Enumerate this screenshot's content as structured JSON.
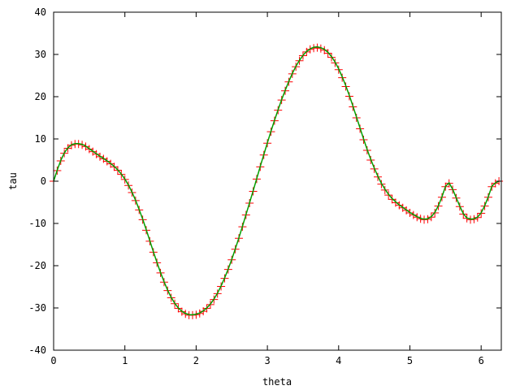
{
  "chart_data": {
    "type": "line",
    "title": "",
    "xlabel": "theta",
    "ylabel": "tau",
    "xlim": [
      0,
      6.283
    ],
    "ylim": [
      -40,
      40
    ],
    "x_ticks": [
      0,
      1,
      2,
      3,
      4,
      5,
      6
    ],
    "y_ticks": [
      -40,
      -30,
      -20,
      -10,
      0,
      10,
      20,
      30,
      40
    ],
    "grid": false,
    "legend": "none",
    "series": [
      {
        "style": "points-plus",
        "color": "#ff0000",
        "x": [
          0.0,
          0.05,
          0.1,
          0.15,
          0.2,
          0.25,
          0.3,
          0.35,
          0.4,
          0.45,
          0.5,
          0.55,
          0.6,
          0.65,
          0.7,
          0.75,
          0.8,
          0.85,
          0.9,
          0.95,
          1.0,
          1.05,
          1.1,
          1.15,
          1.2,
          1.25,
          1.3,
          1.35,
          1.4,
          1.45,
          1.5,
          1.55,
          1.6,
          1.65,
          1.7,
          1.75,
          1.8,
          1.85,
          1.9,
          1.95,
          2.0,
          2.05,
          2.1,
          2.15,
          2.2,
          2.25,
          2.3,
          2.35,
          2.4,
          2.45,
          2.5,
          2.55,
          2.6,
          2.65,
          2.7,
          2.75,
          2.8,
          2.85,
          2.9,
          2.95,
          3.0,
          3.05,
          3.1,
          3.15,
          3.2,
          3.25,
          3.3,
          3.35,
          3.4,
          3.45,
          3.5,
          3.55,
          3.6,
          3.65,
          3.7,
          3.75,
          3.8,
          3.85,
          3.9,
          3.95,
          4.0,
          4.05,
          4.1,
          4.15,
          4.2,
          4.25,
          4.3,
          4.35,
          4.4,
          4.45,
          4.5,
          4.55,
          4.6,
          4.65,
          4.7,
          4.75,
          4.8,
          4.85,
          4.9,
          4.95,
          5.0,
          5.05,
          5.1,
          5.15,
          5.2,
          5.25,
          5.3,
          5.35,
          5.4,
          5.45,
          5.5,
          5.55,
          5.6,
          5.65,
          5.7,
          5.75,
          5.8,
          5.85,
          5.9,
          5.95,
          6.0,
          6.05,
          6.1,
          6.15,
          6.2,
          6.25
        ],
        "values": [
          0.0,
          2.5,
          4.8,
          6.6,
          7.8,
          8.5,
          8.8,
          8.8,
          8.6,
          8.2,
          7.6,
          7.0,
          6.4,
          5.8,
          5.3,
          4.7,
          4.1,
          3.4,
          2.6,
          1.6,
          0.4,
          -1.0,
          -2.7,
          -4.6,
          -6.8,
          -9.1,
          -11.6,
          -14.2,
          -16.8,
          -19.3,
          -21.7,
          -23.9,
          -25.9,
          -27.6,
          -29.0,
          -30.1,
          -30.9,
          -31.4,
          -31.7,
          -31.7,
          -31.6,
          -31.3,
          -30.8,
          -30.1,
          -29.2,
          -28.0,
          -26.6,
          -24.9,
          -23.0,
          -20.9,
          -18.6,
          -16.1,
          -13.5,
          -10.8,
          -8.0,
          -5.2,
          -2.4,
          0.5,
          3.4,
          6.2,
          9.0,
          11.7,
          14.3,
          16.8,
          19.2,
          21.4,
          23.5,
          25.4,
          27.1,
          28.5,
          29.7,
          30.6,
          31.2,
          31.5,
          31.6,
          31.4,
          31.0,
          30.3,
          29.3,
          28.0,
          26.4,
          24.5,
          22.4,
          20.1,
          17.6,
          15.0,
          12.4,
          9.8,
          7.3,
          5.0,
          2.9,
          1.0,
          -0.7,
          -2.1,
          -3.3,
          -4.3,
          -5.1,
          -5.7,
          -6.3,
          -6.9,
          -7.5,
          -8.0,
          -8.5,
          -8.9,
          -9.1,
          -9.0,
          -8.5,
          -7.5,
          -5.9,
          -3.8,
          -1.3,
          -0.5,
          -2.0,
          -4.0,
          -6.0,
          -7.8,
          -8.8,
          -9.1,
          -9.0,
          -8.6,
          -7.6,
          -5.9,
          -3.8,
          -1.3,
          -0.5,
          0.0
        ]
      },
      {
        "style": "line",
        "color": "#00a000",
        "x": [
          0.0,
          0.05,
          0.1,
          0.15,
          0.2,
          0.25,
          0.3,
          0.35,
          0.4,
          0.45,
          0.5,
          0.55,
          0.6,
          0.65,
          0.7,
          0.75,
          0.8,
          0.85,
          0.9,
          0.95,
          1.0,
          1.05,
          1.1,
          1.15,
          1.2,
          1.25,
          1.3,
          1.35,
          1.4,
          1.45,
          1.5,
          1.55,
          1.6,
          1.65,
          1.7,
          1.75,
          1.8,
          1.85,
          1.9,
          1.95,
          2.0,
          2.05,
          2.1,
          2.15,
          2.2,
          2.25,
          2.3,
          2.35,
          2.4,
          2.45,
          2.5,
          2.55,
          2.6,
          2.65,
          2.7,
          2.75,
          2.8,
          2.85,
          2.9,
          2.95,
          3.0,
          3.05,
          3.1,
          3.15,
          3.2,
          3.25,
          3.3,
          3.35,
          3.4,
          3.45,
          3.5,
          3.55,
          3.6,
          3.65,
          3.7,
          3.75,
          3.8,
          3.85,
          3.9,
          3.95,
          4.0,
          4.05,
          4.1,
          4.15,
          4.2,
          4.25,
          4.3,
          4.35,
          4.4,
          4.45,
          4.5,
          4.55,
          4.6,
          4.65,
          4.7,
          4.75,
          4.8,
          4.85,
          4.9,
          4.95,
          5.0,
          5.05,
          5.1,
          5.15,
          5.2,
          5.25,
          5.3,
          5.35,
          5.4,
          5.45,
          5.5,
          5.55,
          5.6,
          5.65,
          5.7,
          5.75,
          5.8,
          5.85,
          5.9,
          5.95,
          6.0,
          6.05,
          6.1,
          6.15,
          6.2,
          6.25
        ],
        "values": [
          0.0,
          2.6,
          4.9,
          6.7,
          7.9,
          8.6,
          8.9,
          8.9,
          8.7,
          8.3,
          7.7,
          7.1,
          6.5,
          5.9,
          5.4,
          4.8,
          4.2,
          3.5,
          2.7,
          1.7,
          0.5,
          -0.9,
          -2.6,
          -4.5,
          -6.7,
          -9.0,
          -11.5,
          -14.1,
          -16.7,
          -19.2,
          -21.6,
          -23.8,
          -25.8,
          -27.5,
          -28.9,
          -30.0,
          -30.8,
          -31.3,
          -31.6,
          -31.6,
          -31.5,
          -31.2,
          -30.7,
          -30.0,
          -29.1,
          -27.9,
          -26.5,
          -24.8,
          -22.9,
          -20.8,
          -18.5,
          -16.0,
          -13.4,
          -10.7,
          -7.9,
          -5.1,
          -2.3,
          0.6,
          3.5,
          6.3,
          9.1,
          11.8,
          14.4,
          16.9,
          19.3,
          21.5,
          23.6,
          25.5,
          27.2,
          28.6,
          29.8,
          30.7,
          31.3,
          31.7,
          31.8,
          31.6,
          31.2,
          30.5,
          29.5,
          28.2,
          26.6,
          24.7,
          22.6,
          20.3,
          17.8,
          15.2,
          12.6,
          10.0,
          7.5,
          5.2,
          3.1,
          1.2,
          -0.5,
          -1.9,
          -3.1,
          -4.1,
          -4.9,
          -5.6,
          -6.2,
          -6.8,
          -7.4,
          -7.9,
          -8.4,
          -8.8,
          -9.0,
          -8.9,
          -8.4,
          -7.4,
          -5.8,
          -3.7,
          -1.2,
          -0.4,
          -1.9,
          -3.9,
          -5.9,
          -7.7,
          -8.7,
          -9.0,
          -8.9,
          -8.5,
          -7.5,
          -5.8,
          -3.7,
          -1.2,
          -0.4,
          0.0
        ]
      }
    ]
  }
}
